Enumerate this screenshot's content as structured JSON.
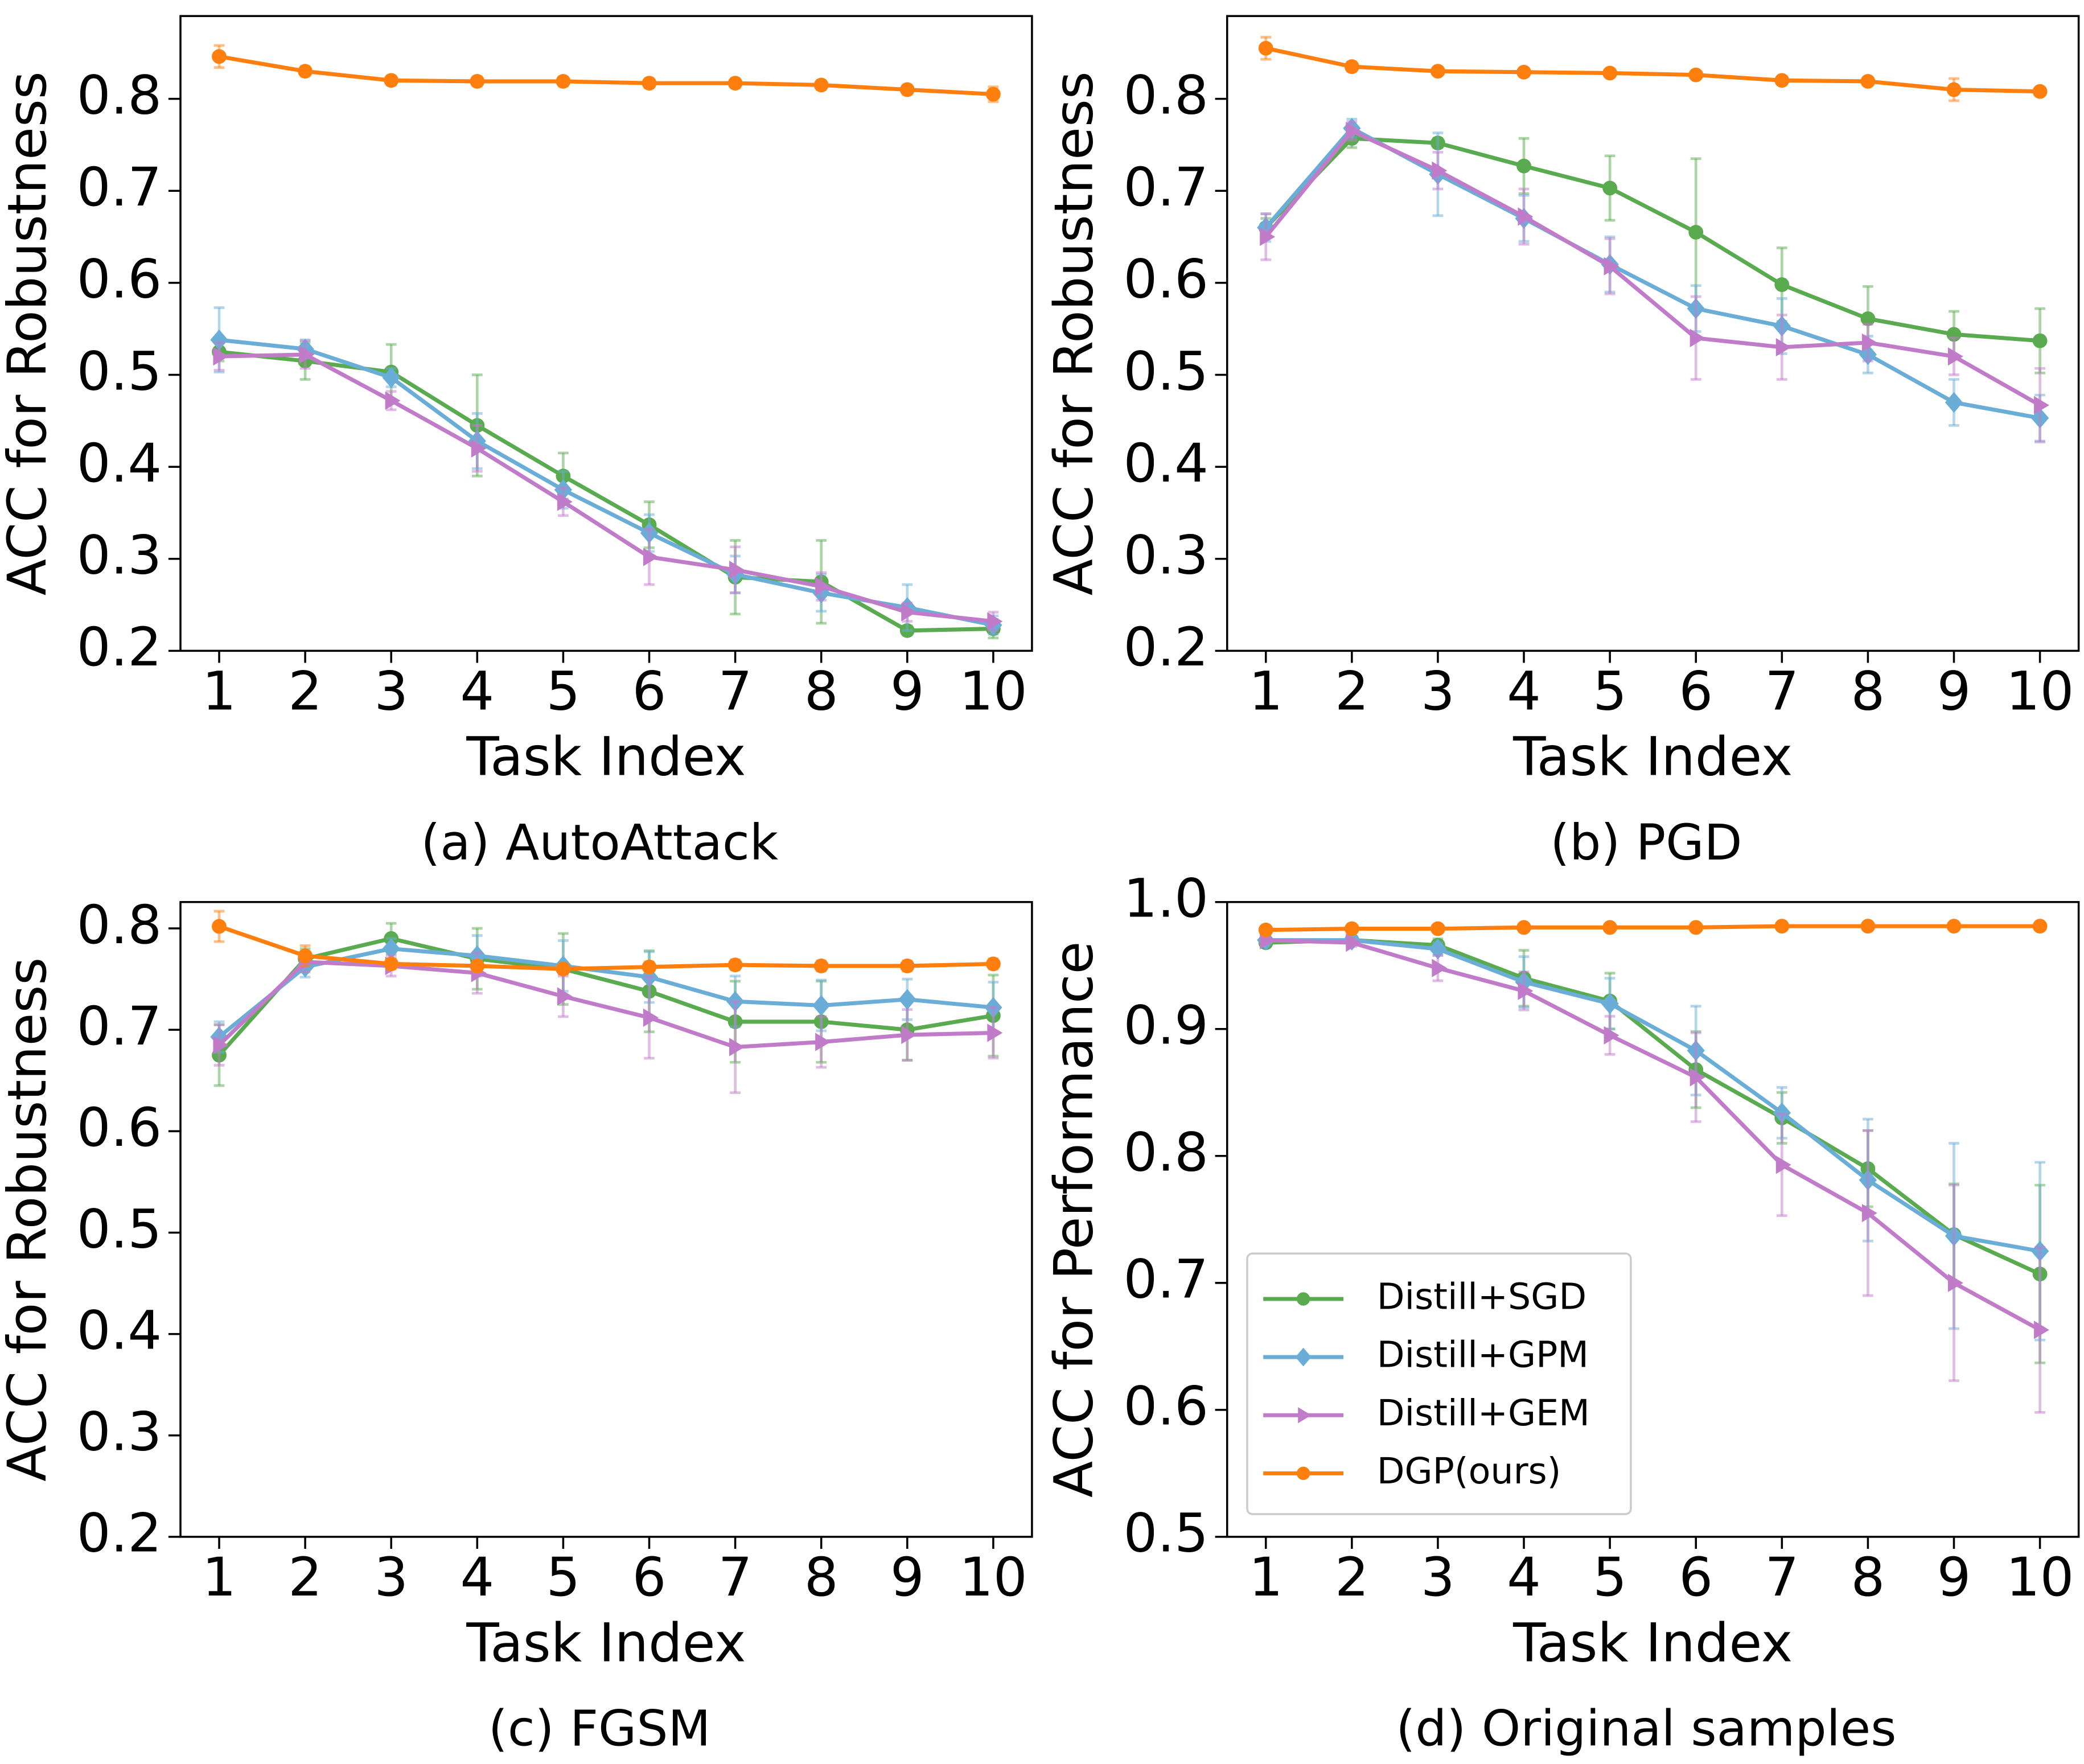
{
  "chart_data": [
    {
      "type": "line",
      "caption": "(a) AutoAttack",
      "xlabel": "Task Index",
      "ylabel": "ACC for Robustness",
      "x": [
        1,
        2,
        3,
        4,
        5,
        6,
        7,
        8,
        9,
        10
      ],
      "xlim": [
        0.55,
        10.45
      ],
      "xticks": [
        1,
        2,
        3,
        4,
        5,
        6,
        7,
        8,
        9,
        10
      ],
      "ylim": [
        0.2,
        0.89
      ],
      "yticks": [
        0.2,
        0.3,
        0.4,
        0.5,
        0.6,
        0.7,
        0.8
      ],
      "series": [
        {
          "name": "Distill+SGD",
          "color": "#5aab4f",
          "marker": "circle",
          "values": [
            0.525,
            0.515,
            0.503,
            0.445,
            0.39,
            0.337,
            0.28,
            0.275,
            0.222,
            0.224
          ],
          "errors": [
            0.01,
            0.02,
            0.03,
            0.055,
            0.025,
            0.025,
            0.04,
            0.045,
            0.005,
            0.01
          ]
        },
        {
          "name": "Distill+GPM",
          "color": "#6aaed8",
          "marker": "diamond",
          "values": [
            0.538,
            0.528,
            0.497,
            0.428,
            0.375,
            0.328,
            0.283,
            0.263,
            0.247,
            0.228
          ],
          "errors": [
            0.035,
            0.01,
            0.01,
            0.03,
            0.02,
            0.02,
            0.02,
            0.02,
            0.025,
            0.01
          ]
        },
        {
          "name": "Distill+GEM",
          "color": "#c17cc9",
          "marker": "triangle",
          "values": [
            0.52,
            0.522,
            0.472,
            0.42,
            0.362,
            0.302,
            0.288,
            0.27,
            0.242,
            0.232
          ],
          "errors": [
            0.015,
            0.015,
            0.01,
            0.025,
            0.015,
            0.03,
            0.025,
            0.015,
            0.01,
            0.01
          ]
        },
        {
          "name": "DGP(ours)",
          "color": "#ff7f0e",
          "marker": "circle",
          "values": [
            0.846,
            0.83,
            0.82,
            0.819,
            0.819,
            0.817,
            0.817,
            0.815,
            0.81,
            0.805
          ],
          "errors": [
            0.012,
            0.005,
            0.005,
            0.005,
            0.005,
            0.005,
            0.005,
            0.005,
            0.005,
            0.008
          ]
        }
      ]
    },
    {
      "type": "line",
      "caption": "(b) PGD",
      "xlabel": "Task Index",
      "ylabel": "ACC for Robustness",
      "x": [
        1,
        2,
        3,
        4,
        5,
        6,
        7,
        8,
        9,
        10
      ],
      "xlim": [
        0.55,
        10.45
      ],
      "xticks": [
        1,
        2,
        3,
        4,
        5,
        6,
        7,
        8,
        9,
        10
      ],
      "ylim": [
        0.2,
        0.89
      ],
      "yticks": [
        0.2,
        0.3,
        0.4,
        0.5,
        0.6,
        0.7,
        0.8
      ],
      "series": [
        {
          "name": "Distill+SGD",
          "color": "#5aab4f",
          "marker": "circle",
          "values": [
            0.66,
            0.757,
            0.752,
            0.727,
            0.703,
            0.655,
            0.598,
            0.561,
            0.544,
            0.537
          ],
          "errors": [
            0.01,
            0.01,
            0.005,
            0.03,
            0.035,
            0.08,
            0.04,
            0.035,
            0.025,
            0.035
          ]
        },
        {
          "name": "Distill+GPM",
          "color": "#6aaed8",
          "marker": "diamond",
          "values": [
            0.66,
            0.768,
            0.718,
            0.67,
            0.62,
            0.572,
            0.553,
            0.522,
            0.47,
            0.453
          ],
          "errors": [
            0.015,
            0.01,
            0.045,
            0.025,
            0.03,
            0.025,
            0.03,
            0.02,
            0.025,
            0.025
          ]
        },
        {
          "name": "Distill+GEM",
          "color": "#c17cc9",
          "marker": "triangle",
          "values": [
            0.65,
            0.765,
            0.722,
            0.672,
            0.618,
            0.54,
            0.53,
            0.535,
            0.52,
            0.467
          ],
          "errors": [
            0.025,
            0.01,
            0.02,
            0.03,
            0.03,
            0.045,
            0.035,
            0.02,
            0.02,
            0.04
          ]
        },
        {
          "name": "DGP(ours)",
          "color": "#ff7f0e",
          "marker": "circle",
          "values": [
            0.855,
            0.835,
            0.83,
            0.829,
            0.828,
            0.826,
            0.82,
            0.819,
            0.81,
            0.808
          ],
          "errors": [
            0.012,
            0.005,
            0.004,
            0.004,
            0.004,
            0.004,
            0.004,
            0.004,
            0.012,
            0.004
          ]
        }
      ]
    },
    {
      "type": "line",
      "caption": "(c) FGSM",
      "xlabel": "Task Index",
      "ylabel": "ACC for Robustness",
      "x": [
        1,
        2,
        3,
        4,
        5,
        6,
        7,
        8,
        9,
        10
      ],
      "xlim": [
        0.55,
        10.45
      ],
      "xticks": [
        1,
        2,
        3,
        4,
        5,
        6,
        7,
        8,
        9,
        10
      ],
      "ylim": [
        0.2,
        0.826
      ],
      "yticks": [
        0.2,
        0.3,
        0.4,
        0.5,
        0.6,
        0.7,
        0.8
      ],
      "series": [
        {
          "name": "Distill+SGD",
          "color": "#5aab4f",
          "marker": "circle",
          "values": [
            0.675,
            0.77,
            0.79,
            0.77,
            0.76,
            0.738,
            0.708,
            0.708,
            0.7,
            0.714
          ],
          "errors": [
            0.03,
            0.01,
            0.015,
            0.03,
            0.035,
            0.04,
            0.04,
            0.04,
            0.03,
            0.04
          ]
        },
        {
          "name": "Distill+GPM",
          "color": "#6aaed8",
          "marker": "diamond",
          "values": [
            0.693,
            0.762,
            0.78,
            0.773,
            0.763,
            0.752,
            0.728,
            0.724,
            0.73,
            0.722
          ],
          "errors": [
            0.015,
            0.01,
            0.01,
            0.02,
            0.025,
            0.025,
            0.025,
            0.025,
            0.02,
            0.025
          ]
        },
        {
          "name": "Distill+GEM",
          "color": "#c17cc9",
          "marker": "triangle",
          "values": [
            0.685,
            0.767,
            0.763,
            0.756,
            0.733,
            0.712,
            0.683,
            0.688,
            0.695,
            0.697
          ],
          "errors": [
            0.02,
            0.01,
            0.01,
            0.02,
            0.02,
            0.04,
            0.045,
            0.025,
            0.025,
            0.025
          ]
        },
        {
          "name": "DGP(ours)",
          "color": "#ff7f0e",
          "marker": "circle",
          "values": [
            0.802,
            0.773,
            0.765,
            0.763,
            0.76,
            0.762,
            0.764,
            0.763,
            0.763,
            0.765
          ],
          "errors": [
            0.015,
            0.01,
            0.005,
            0.005,
            0.005,
            0.005,
            0.005,
            0.005,
            0.005,
            0.005
          ]
        }
      ]
    },
    {
      "type": "line",
      "caption": "(d) Original samples",
      "xlabel": "Task Index",
      "ylabel": "ACC for Performance",
      "legend": "lower left",
      "x": [
        1,
        2,
        3,
        4,
        5,
        6,
        7,
        8,
        9,
        10
      ],
      "xlim": [
        0.55,
        10.45
      ],
      "xticks": [
        1,
        2,
        3,
        4,
        5,
        6,
        7,
        8,
        9,
        10
      ],
      "ylim": [
        0.5,
        1.0
      ],
      "yticks": [
        0.5,
        0.6,
        0.7,
        0.8,
        0.9,
        {
          "value": 1,
          "label": "1.0"
        }
      ],
      "series": [
        {
          "name": "Distill+SGD",
          "color": "#5aab4f",
          "marker": "circle",
          "values": [
            0.968,
            0.97,
            0.966,
            0.94,
            0.922,
            0.868,
            0.83,
            0.79,
            0.738,
            0.707
          ],
          "errors": [
            0.003,
            0.003,
            0.005,
            0.022,
            0.022,
            0.03,
            0.02,
            0.03,
            0.04,
            0.07
          ]
        },
        {
          "name": "Distill+GPM",
          "color": "#6aaed8",
          "marker": "diamond",
          "values": [
            0.97,
            0.97,
            0.963,
            0.937,
            0.92,
            0.883,
            0.834,
            0.781,
            0.737,
            0.725
          ],
          "errors": [
            0.003,
            0.003,
            0.005,
            0.02,
            0.02,
            0.035,
            0.02,
            0.048,
            0.073,
            0.07
          ]
        },
        {
          "name": "Distill+GEM",
          "color": "#c17cc9",
          "marker": "triangle",
          "values": [
            0.97,
            0.968,
            0.948,
            0.93,
            0.895,
            0.862,
            0.793,
            0.755,
            0.7,
            0.663
          ],
          "errors": [
            0.003,
            0.003,
            0.01,
            0.015,
            0.015,
            0.035,
            0.04,
            0.065,
            0.077,
            0.065
          ]
        },
        {
          "name": "DGP(ours)",
          "color": "#ff7f0e",
          "marker": "circle",
          "values": [
            0.978,
            0.979,
            0.979,
            0.98,
            0.98,
            0.98,
            0.981,
            0.981,
            0.981,
            0.981
          ],
          "errors": [
            0.002,
            0.002,
            0.002,
            0.002,
            0.002,
            0.002,
            0.002,
            0.002,
            0.002,
            0.002
          ]
        }
      ]
    }
  ]
}
